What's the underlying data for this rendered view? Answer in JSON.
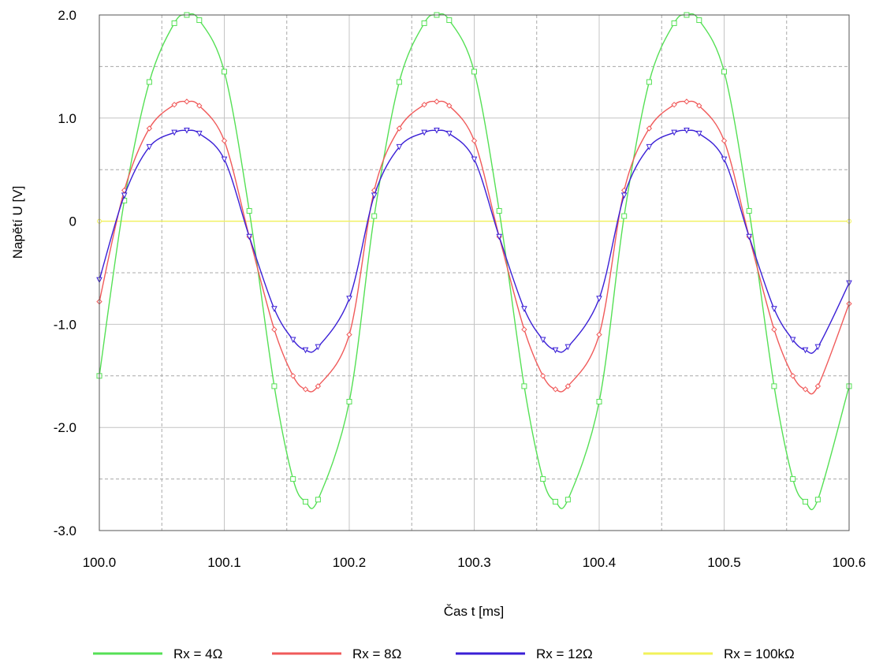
{
  "chart_data": {
    "type": "line",
    "xlabel": "Čas  t [ms]",
    "ylabel": "Napětí  U [V]",
    "xlim": [
      100.0,
      100.6
    ],
    "ylim": [
      -3.0,
      2.0
    ],
    "x_ticks": [
      100.0,
      100.1,
      100.2,
      100.3,
      100.4,
      100.5,
      100.6
    ],
    "x_tick_labels": [
      "100.0",
      "100.1",
      "100.2",
      "100.3",
      "100.4",
      "100.5",
      "100.6"
    ],
    "y_ticks": [
      2.0,
      1.0,
      0,
      -1.0,
      -2.0,
      -3.0
    ],
    "y_tick_labels": [
      "2.0",
      "1.0",
      "0",
      "-1.0",
      "-2.0",
      "-3.0"
    ],
    "grid": true,
    "legend_position": "bottom",
    "series": [
      {
        "name": "Rx = 4Ω",
        "color": "#55e055",
        "marker": "square",
        "x": [
          100.0,
          100.02,
          100.04,
          100.06,
          100.07,
          100.08,
          100.1,
          100.12,
          100.14,
          100.155,
          100.165,
          100.175,
          100.2,
          100.22,
          100.24,
          100.26,
          100.27,
          100.28,
          100.3,
          100.32,
          100.34,
          100.355,
          100.365,
          100.375,
          100.4,
          100.42,
          100.44,
          100.46,
          100.47,
          100.48,
          100.5,
          100.52,
          100.54,
          100.555,
          100.565,
          100.575,
          100.6
        ],
        "y": [
          -1.5,
          0.2,
          1.35,
          1.92,
          2.0,
          1.95,
          1.45,
          0.1,
          -1.6,
          -2.5,
          -2.72,
          -2.7,
          -1.75,
          0.05,
          1.35,
          1.92,
          2.0,
          1.95,
          1.45,
          0.1,
          -1.6,
          -2.5,
          -2.72,
          -2.7,
          -1.75,
          0.05,
          1.35,
          1.92,
          2.0,
          1.95,
          1.45,
          0.1,
          -1.6,
          -2.5,
          -2.72,
          -2.7,
          -1.6
        ]
      },
      {
        "name": "Rx = 8Ω",
        "color": "#f05a5a",
        "marker": "diamond",
        "x": [
          100.0,
          100.02,
          100.04,
          100.06,
          100.07,
          100.08,
          100.1,
          100.12,
          100.14,
          100.155,
          100.165,
          100.175,
          100.2,
          100.22,
          100.24,
          100.26,
          100.27,
          100.28,
          100.3,
          100.32,
          100.34,
          100.355,
          100.365,
          100.375,
          100.4,
          100.42,
          100.44,
          100.46,
          100.47,
          100.48,
          100.5,
          100.52,
          100.54,
          100.555,
          100.565,
          100.575,
          100.6
        ],
        "y": [
          -0.78,
          0.3,
          0.9,
          1.13,
          1.16,
          1.12,
          0.78,
          -0.15,
          -1.05,
          -1.5,
          -1.63,
          -1.6,
          -1.1,
          0.3,
          0.9,
          1.13,
          1.16,
          1.12,
          0.78,
          -0.15,
          -1.05,
          -1.5,
          -1.63,
          -1.6,
          -1.1,
          0.3,
          0.9,
          1.13,
          1.16,
          1.12,
          0.78,
          -0.15,
          -1.05,
          -1.5,
          -1.63,
          -1.6,
          -0.8
        ]
      },
      {
        "name": "Rx = 12Ω",
        "color": "#3a1fd6",
        "marker": "triangle-down",
        "x": [
          100.0,
          100.02,
          100.04,
          100.06,
          100.07,
          100.08,
          100.1,
          100.12,
          100.14,
          100.155,
          100.165,
          100.175,
          100.2,
          100.22,
          100.24,
          100.26,
          100.27,
          100.28,
          100.3,
          100.32,
          100.34,
          100.355,
          100.365,
          100.375,
          100.4,
          100.42,
          100.44,
          100.46,
          100.47,
          100.48,
          100.5,
          100.52,
          100.54,
          100.555,
          100.565,
          100.575,
          100.6
        ],
        "y": [
          -0.57,
          0.25,
          0.72,
          0.86,
          0.88,
          0.85,
          0.6,
          -0.15,
          -0.85,
          -1.15,
          -1.25,
          -1.22,
          -0.75,
          0.25,
          0.72,
          0.86,
          0.88,
          0.85,
          0.6,
          -0.15,
          -0.85,
          -1.15,
          -1.25,
          -1.22,
          -0.75,
          0.25,
          0.72,
          0.86,
          0.88,
          0.85,
          0.6,
          -0.15,
          -0.85,
          -1.15,
          -1.25,
          -1.22,
          -0.6
        ]
      },
      {
        "name": "Rx = 100kΩ",
        "color": "#f2f25a",
        "marker": "circle",
        "x": [
          100.0,
          100.6
        ],
        "y": [
          0.0,
          0.0
        ]
      }
    ]
  }
}
